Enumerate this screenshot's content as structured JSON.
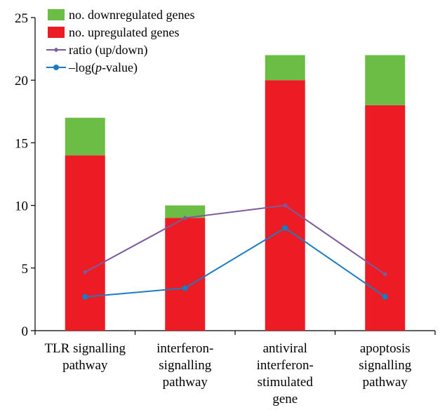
{
  "chart_data": {
    "type": "bar",
    "stacked": true,
    "categories": [
      [
        "TLR signalling",
        "pathway"
      ],
      [
        "interferon-",
        "signalling",
        "pathway"
      ],
      [
        "antiviral",
        "interferon-",
        "stimulated",
        "gene"
      ],
      [
        "apoptosis",
        "signalling",
        "pathway"
      ]
    ],
    "series": [
      {
        "name": "no. upregulated genes",
        "kind": "bar",
        "color": "#ed1c24",
        "values": [
          14,
          9,
          20,
          18
        ]
      },
      {
        "name": "no. downregulated genes",
        "kind": "bar",
        "color": "#6cbd45",
        "values": [
          3,
          1,
          2,
          4
        ]
      },
      {
        "name": "ratio (up/down)",
        "kind": "line",
        "color": "#7b5b9b",
        "marker": "diamond",
        "values": [
          4.67,
          9,
          10,
          4.5
        ]
      },
      {
        "name": "–log(p-value)",
        "kind": "line",
        "color": "#1f7bc1",
        "marker": "circle",
        "values": [
          2.7,
          3.4,
          8.2,
          2.7
        ]
      }
    ],
    "legend": [
      {
        "label": "no. downregulated genes",
        "kind": "bar",
        "color": "#6cbd45"
      },
      {
        "label": "no. upregulated genes",
        "kind": "bar",
        "color": "#ed1c24"
      },
      {
        "label": "ratio (up/down)",
        "kind": "line",
        "color": "#7b5b9b",
        "marker": "diamond"
      },
      {
        "label": "–log(p-value)",
        "kind": "line",
        "color": "#1f7bc1",
        "marker": "circle",
        "italic_part": "p"
      }
    ],
    "legend_position": "top-left",
    "ylim": [
      0,
      25
    ],
    "yticks": [
      0,
      5,
      10,
      15,
      20,
      25
    ],
    "grid": false,
    "xlabel": "",
    "ylabel": "",
    "title": ""
  }
}
